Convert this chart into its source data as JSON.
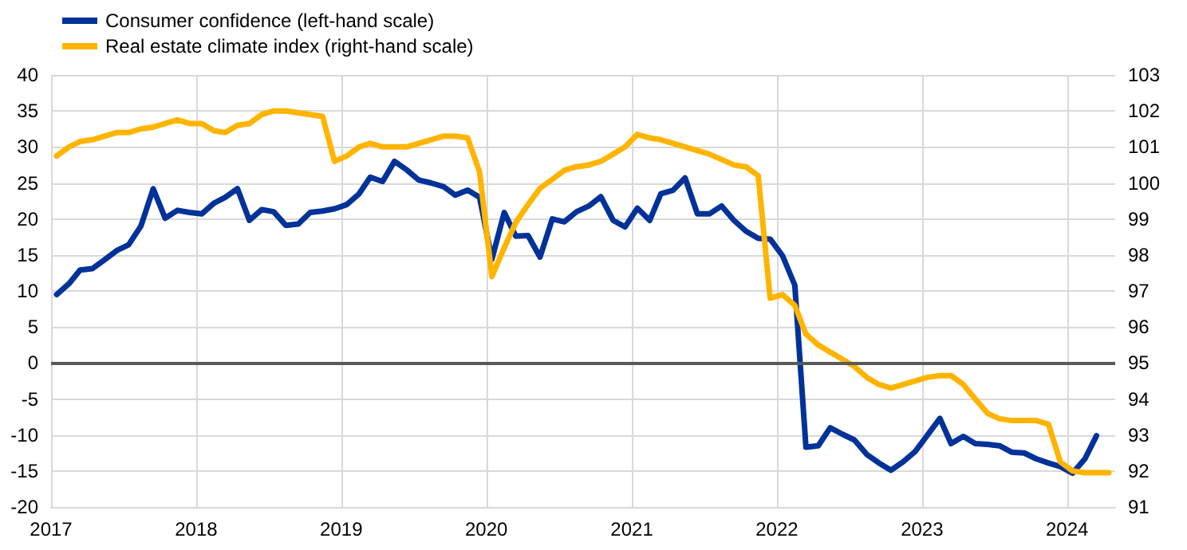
{
  "chart_data": {
    "type": "line",
    "x": [
      "2017-01-15",
      "2017-02-15",
      "2017-03-15",
      "2017-04-15",
      "2017-05-15",
      "2017-06-15",
      "2017-07-15",
      "2017-08-15",
      "2017-09-15",
      "2017-10-15",
      "2017-11-15",
      "2017-12-15",
      "2018-01-15",
      "2018-02-15",
      "2018-03-15",
      "2018-04-15",
      "2018-05-15",
      "2018-06-15",
      "2018-07-15",
      "2018-08-15",
      "2018-09-15",
      "2018-10-15",
      "2018-11-15",
      "2018-12-15",
      "2019-01-15",
      "2019-02-15",
      "2019-03-15",
      "2019-04-15",
      "2019-05-15",
      "2019-06-15",
      "2019-07-15",
      "2019-08-15",
      "2019-09-15",
      "2019-10-15",
      "2019-11-15",
      "2019-12-15",
      "2020-01-15",
      "2020-02-15",
      "2020-03-15",
      "2020-04-15",
      "2020-05-15",
      "2020-06-15",
      "2020-07-15",
      "2020-08-15",
      "2020-09-15",
      "2020-10-15",
      "2020-11-15",
      "2020-12-15",
      "2021-01-15",
      "2021-02-15",
      "2021-03-15",
      "2021-04-15",
      "2021-05-15",
      "2021-06-15",
      "2021-07-15",
      "2021-08-15",
      "2021-09-15",
      "2021-10-15",
      "2021-11-15",
      "2021-12-15",
      "2022-01-15",
      "2022-02-15",
      "2022-03-15",
      "2022-04-15",
      "2022-05-15",
      "2022-06-15",
      "2022-07-15",
      "2022-08-15",
      "2022-09-15",
      "2022-10-15",
      "2022-11-15",
      "2022-12-15",
      "2023-01-15",
      "2023-02-15",
      "2023-03-15",
      "2023-04-15",
      "2023-05-15",
      "2023-06-15",
      "2023-07-15",
      "2023-08-15",
      "2023-09-15",
      "2023-10-15",
      "2023-11-15",
      "2023-12-15",
      "2024-01-15",
      "2024-02-15",
      "2024-03-15",
      "2024-04-15"
    ],
    "series": [
      {
        "name": "Consumer confidence (left-hand scale)",
        "color": "#003299",
        "values": [
          9.5,
          11,
          12.9,
          13.1,
          14.3,
          15.6,
          16.4,
          19,
          24.2,
          20.1,
          21.2,
          20.9,
          20.7,
          22.2,
          23,
          24.2,
          19.8,
          21.3,
          21,
          19.1,
          19.3,
          20.9,
          21.1,
          21.4,
          22,
          23.5,
          25.8,
          25.2,
          28,
          26.8,
          25.4,
          25,
          24.5,
          23.3,
          24,
          23,
          14.4,
          20.9,
          17.6,
          17.7,
          14.7,
          20,
          19.6,
          21,
          21.8,
          23.1,
          19.8,
          18.9,
          21.5,
          19.8,
          23.5,
          24,
          25.7,
          20.7,
          20.7,
          21.8,
          19.8,
          18.3,
          17.3,
          17.2,
          14.9,
          10.8,
          -11.7,
          -11.5,
          -9,
          -9.9,
          -10.7,
          -12.7,
          -13.9,
          -14.9,
          -13.7,
          -12.3,
          -10,
          -7.7,
          -11.2,
          -10.2,
          -11.2,
          -11.3,
          -11.5,
          -12.4,
          -12.5,
          -13.3,
          -13.9,
          -14.4,
          -15.3,
          -13.3,
          -10.1,
          null
        ]
      },
      {
        "name": "Real estate climate index (right-hand scale)",
        "color": "#ffb400",
        "axis": "y2",
        "values": [
          100.75,
          101.0,
          101.15,
          101.2,
          101.3,
          101.4,
          101.4,
          101.5,
          101.55,
          101.65,
          101.75,
          101.65,
          101.65,
          101.45,
          101.4,
          101.6,
          101.65,
          101.9,
          102.0,
          102.0,
          101.95,
          101.9,
          101.85,
          100.6,
          100.75,
          101.0,
          101.1,
          101.0,
          101.0,
          101.0,
          101.1,
          101.2,
          101.3,
          101.3,
          101.25,
          100.3,
          97.4,
          98.2,
          98.9,
          99.4,
          99.85,
          100.1,
          100.35,
          100.45,
          100.5,
          100.6,
          100.8,
          101.0,
          101.35,
          101.25,
          101.2,
          101.1,
          101.0,
          100.9,
          100.8,
          100.65,
          100.5,
          100.45,
          100.2,
          96.8,
          96.9,
          96.6,
          95.8,
          95.5,
          95.3,
          95.1,
          94.9,
          94.6,
          94.4,
          94.3,
          94.4,
          94.5,
          94.6,
          94.65,
          94.65,
          94.4,
          94.0,
          93.6,
          93.45,
          93.4,
          93.4,
          93.4,
          93.3,
          92.25,
          92.0,
          91.95,
          91.95,
          91.95
        ]
      }
    ],
    "xlim": [
      "2017-01-01",
      "2024-05-01"
    ],
    "xticks": [
      {
        "value": "2017",
        "label": "2017"
      },
      {
        "value": "2018",
        "label": "2018"
      },
      {
        "value": "2019",
        "label": "2019"
      },
      {
        "value": "2020",
        "label": "2020"
      },
      {
        "value": "2021",
        "label": "2021"
      },
      {
        "value": "2022",
        "label": "2022"
      },
      {
        "value": "2023",
        "label": "2023"
      },
      {
        "value": "2024",
        "label": "2024"
      }
    ],
    "ylim": [
      -20,
      40
    ],
    "yticks": [
      -20,
      -15,
      -10,
      -5,
      0,
      5,
      10,
      15,
      20,
      25,
      30,
      35,
      40
    ],
    "y2lim": [
      91,
      103
    ],
    "y2ticks": [
      91,
      92,
      93,
      94,
      95,
      96,
      97,
      98,
      99,
      100,
      101,
      102,
      103
    ],
    "ref_lines": [
      {
        "axis": "y",
        "value": 0,
        "color": "#595959"
      }
    ],
    "grid": true,
    "legend": "top left",
    "marker": "none",
    "line_style": "solid"
  }
}
